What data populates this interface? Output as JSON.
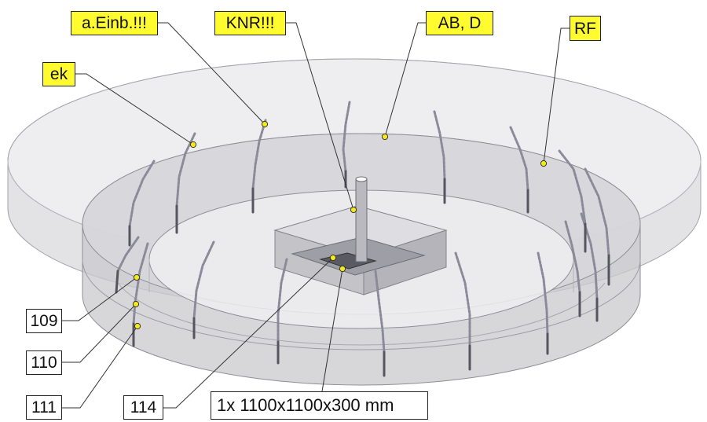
{
  "callouts": {
    "ek": "ek",
    "a_einb": "a.Einb.!!!",
    "knr": "KNR!!!",
    "ab_d": "AB, D",
    "rf": "RF",
    "n109": "109",
    "n110": "110",
    "n111": "111",
    "n114": "114",
    "dim": "1x  1100x1100x300 mm"
  },
  "colors": {
    "callout_highlight": "#fffb2e",
    "marker_dot": "#f4ea1a",
    "chain_metal": "#8a8a9a",
    "slab_fill": "#d2d2d6"
  }
}
